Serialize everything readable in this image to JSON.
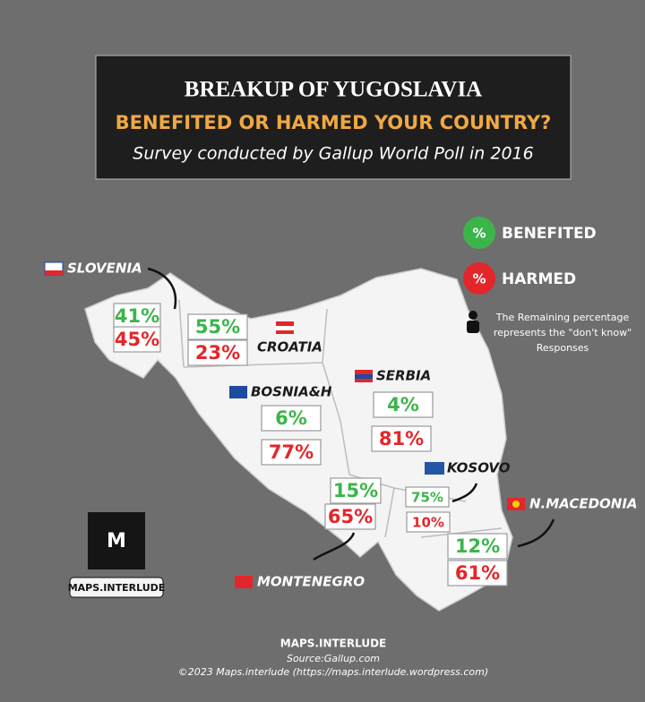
{
  "header": {
    "title": "BREAKUP OF YUGOSLAVIA",
    "subtitle": "BENEFITED OR HARMED YOUR COUNTRY?",
    "caption": "Survey conducted by Gallup World Poll in 2016"
  },
  "legend": {
    "benefited": "BENEFITED",
    "harmed": "HARMED",
    "symbol": "%",
    "note": [
      "The Remaining percentage",
      "represents the \"don't know\"",
      "Responses"
    ]
  },
  "regions": [
    {
      "name": "SLOVENIA",
      "benefited": "41%",
      "harmed": "45%"
    },
    {
      "name": "CROATIA",
      "benefited": "55%",
      "harmed": "23%"
    },
    {
      "name": "BOSNIA&H",
      "benefited": "6%",
      "harmed": "77%"
    },
    {
      "name": "SERBIA",
      "benefited": "4%",
      "harmed": "81%"
    },
    {
      "name": "KOSOVO",
      "benefited": "75%",
      "harmed": "10%"
    },
    {
      "name": "N.MACEDONIA",
      "benefited": "12%",
      "harmed": "61%"
    },
    {
      "name": "MONTENEGRO",
      "benefited": "15%",
      "harmed": "65%"
    }
  ],
  "logo": {
    "mark": "M",
    "label": "MAPS.INTERLUDE"
  },
  "footer": {
    "brand": "MAPS.INTERLUDE",
    "source": "Source:Gallup.com",
    "copyright": "©2023 Maps.interlude (https://maps.interlude.wordpress.com)"
  }
}
